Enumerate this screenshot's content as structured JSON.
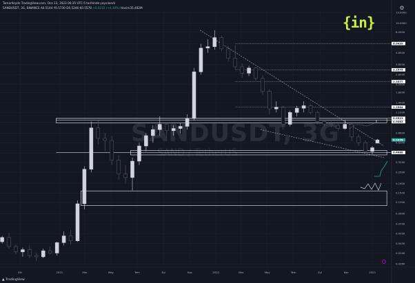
{
  "header": {
    "line1": "Tamarlleydo TradingView.com, Oca 13, 2023 06:35 UTC-5 tarihinde yayınlandı",
    "symbol": "SANDUSDT, 3G, BINANCE",
    "ohlc": "A0.5144 Y0.5730 D0.5246 K0.5578",
    "change": "+0.0232 (+4.34%)",
    "volume": "Hacim35.482M"
  },
  "logo": "{in}",
  "settings_icon": "gear-icon",
  "footer": "TradingView",
  "chart_data": {
    "type": "candlestick",
    "title": "SANDUSDT, 3G",
    "watermark_symbol": "SANDUSDT, 3G",
    "watermark_pair": "SAND / TetherUS",
    "y_scale": "log",
    "ylim": [
      0.024,
      13.5
    ],
    "y_ticks": [
      "13.0000",
      "10.0000",
      "8.0000",
      "6.0000",
      "4.8000",
      "3.6000",
      "2.8000",
      "2.2000",
      "1.8000",
      "1.4000",
      "1.1000",
      "0.8600",
      "0.6600",
      "0.5200",
      "0.4000",
      "0.3200",
      "0.2500",
      "0.1900",
      "0.1500",
      "0.1200",
      "0.0900",
      "0.0700",
      "0.0550",
      "0.0430",
      "0.0340",
      "0.0260"
    ],
    "x_ticks": [
      "Eki",
      "2021",
      "Mar",
      "May",
      "Tem",
      "Eyl",
      "Kas",
      "2022",
      "Mar",
      "May",
      "Tem",
      "Eyl",
      "Kas",
      "2023"
    ],
    "x_tick_dates": [
      "2020-10-01",
      "2021-01-01",
      "2021-03-01",
      "2021-05-01",
      "2021-07-01",
      "2021-09-01",
      "2021-11-01",
      "2022-01-01",
      "2022-03-01",
      "2022-05-01",
      "2022-07-01",
      "2022-09-01",
      "2022-11-01",
      "2023-01-01"
    ],
    "x_range": [
      "2020-08-15",
      "2023-02-15"
    ],
    "price_labels": [
      {
        "value": "6.0439",
        "color": "#ffffff"
      },
      {
        "value": "3.1575",
        "color": "#ffffff"
      },
      {
        "value": "2.3577",
        "color": "#ffffff"
      },
      {
        "value": "1.2564",
        "color": "#ffffff"
      },
      {
        "value": "0.9523",
        "color": "#ffffff"
      },
      {
        "value": "0.9083",
        "color": "#ffffff"
      },
      {
        "value": "0.5578",
        "color": "#26a69a"
      },
      {
        "value": "0.4088",
        "color": "#ffffff"
      }
    ],
    "candles": [
      {
        "d": "2020-08-20",
        "o": 0.045,
        "h": 0.052,
        "l": 0.043,
        "c": 0.05
      },
      {
        "d": "2020-09-05",
        "o": 0.05,
        "h": 0.056,
        "l": 0.038,
        "c": 0.04
      },
      {
        "d": "2020-09-21",
        "o": 0.04,
        "h": 0.042,
        "l": 0.033,
        "c": 0.035
      },
      {
        "d": "2020-10-07",
        "o": 0.035,
        "h": 0.039,
        "l": 0.031,
        "c": 0.037
      },
      {
        "d": "2020-10-23",
        "o": 0.037,
        "h": 0.041,
        "l": 0.03,
        "c": 0.032
      },
      {
        "d": "2020-11-08",
        "o": 0.032,
        "h": 0.034,
        "l": 0.028,
        "c": 0.031
      },
      {
        "d": "2020-11-24",
        "o": 0.031,
        "h": 0.038,
        "l": 0.03,
        "c": 0.036
      },
      {
        "d": "2020-12-10",
        "o": 0.036,
        "h": 0.04,
        "l": 0.033,
        "c": 0.034
      },
      {
        "d": "2020-12-26",
        "o": 0.034,
        "h": 0.045,
        "l": 0.032,
        "c": 0.044
      },
      {
        "d": "2021-01-11",
        "o": 0.044,
        "h": 0.058,
        "l": 0.041,
        "c": 0.052
      },
      {
        "d": "2021-01-27",
        "o": 0.052,
        "h": 0.06,
        "l": 0.042,
        "c": 0.046
      },
      {
        "d": "2021-02-12",
        "o": 0.046,
        "h": 0.125,
        "l": 0.045,
        "c": 0.115
      },
      {
        "d": "2021-02-28",
        "o": 0.115,
        "h": 0.29,
        "l": 0.1,
        "c": 0.27
      },
      {
        "d": "2021-03-16",
        "o": 0.27,
        "h": 0.88,
        "l": 0.25,
        "c": 0.75
      },
      {
        "d": "2021-04-01",
        "o": 0.75,
        "h": 0.9,
        "l": 0.5,
        "c": 0.58
      },
      {
        "d": "2021-04-17",
        "o": 0.58,
        "h": 0.66,
        "l": 0.42,
        "c": 0.55
      },
      {
        "d": "2021-05-03",
        "o": 0.55,
        "h": 0.62,
        "l": 0.3,
        "c": 0.34
      },
      {
        "d": "2021-05-19",
        "o": 0.34,
        "h": 0.38,
        "l": 0.21,
        "c": 0.24
      },
      {
        "d": "2021-06-04",
        "o": 0.24,
        "h": 0.3,
        "l": 0.19,
        "c": 0.22
      },
      {
        "d": "2021-06-20",
        "o": 0.22,
        "h": 0.36,
        "l": 0.16,
        "c": 0.33
      },
      {
        "d": "2021-07-06",
        "o": 0.33,
        "h": 0.52,
        "l": 0.3,
        "c": 0.48
      },
      {
        "d": "2021-07-22",
        "o": 0.48,
        "h": 0.66,
        "l": 0.42,
        "c": 0.62
      },
      {
        "d": "2021-08-07",
        "o": 0.62,
        "h": 0.8,
        "l": 0.52,
        "c": 0.72
      },
      {
        "d": "2021-08-23",
        "o": 0.72,
        "h": 1.0,
        "l": 0.62,
        "c": 0.82
      },
      {
        "d": "2021-09-08",
        "o": 0.82,
        "h": 0.86,
        "l": 0.58,
        "c": 0.7
      },
      {
        "d": "2021-09-24",
        "o": 0.7,
        "h": 0.8,
        "l": 0.62,
        "c": 0.74
      },
      {
        "d": "2021-10-10",
        "o": 0.74,
        "h": 0.85,
        "l": 0.66,
        "c": 0.78
      },
      {
        "d": "2021-10-26",
        "o": 0.78,
        "h": 1.05,
        "l": 0.72,
        "c": 0.95
      },
      {
        "d": "2021-11-11",
        "o": 0.95,
        "h": 3.3,
        "l": 0.9,
        "c": 3.0
      },
      {
        "d": "2021-11-27",
        "o": 3.0,
        "h": 6.0,
        "l": 2.8,
        "c": 5.4
      },
      {
        "d": "2021-12-13",
        "o": 5.4,
        "h": 6.7,
        "l": 4.8,
        "c": 5.6
      },
      {
        "d": "2021-12-29",
        "o": 5.6,
        "h": 8.4,
        "l": 5.2,
        "c": 7.0
      },
      {
        "d": "2022-01-14",
        "o": 7.0,
        "h": 7.3,
        "l": 5.0,
        "c": 5.3
      },
      {
        "d": "2022-01-30",
        "o": 5.3,
        "h": 5.6,
        "l": 3.9,
        "c": 4.2
      },
      {
        "d": "2022-02-15",
        "o": 4.2,
        "h": 5.8,
        "l": 3.2,
        "c": 3.4
      },
      {
        "d": "2022-03-03",
        "o": 3.4,
        "h": 3.7,
        "l": 2.6,
        "c": 2.9
      },
      {
        "d": "2022-03-19",
        "o": 2.9,
        "h": 3.5,
        "l": 2.7,
        "c": 3.3
      },
      {
        "d": "2022-04-04",
        "o": 3.3,
        "h": 3.4,
        "l": 2.4,
        "c": 2.55
      },
      {
        "d": "2022-04-20",
        "o": 2.55,
        "h": 2.75,
        "l": 1.7,
        "c": 1.85
      },
      {
        "d": "2022-05-06",
        "o": 1.85,
        "h": 1.95,
        "l": 1.05,
        "c": 1.2
      },
      {
        "d": "2022-05-22",
        "o": 1.2,
        "h": 1.45,
        "l": 1.1,
        "c": 1.25
      },
      {
        "d": "2022-06-07",
        "o": 1.25,
        "h": 1.3,
        "l": 0.72,
        "c": 0.82
      },
      {
        "d": "2022-06-23",
        "o": 0.82,
        "h": 1.15,
        "l": 0.78,
        "c": 1.1
      },
      {
        "d": "2022-07-09",
        "o": 1.1,
        "h": 1.3,
        "l": 1.0,
        "c": 1.22
      },
      {
        "d": "2022-07-25",
        "o": 1.22,
        "h": 1.45,
        "l": 1.1,
        "c": 1.3
      },
      {
        "d": "2022-08-10",
        "o": 1.3,
        "h": 1.35,
        "l": 1.05,
        "c": 1.1
      },
      {
        "d": "2022-08-26",
        "o": 1.1,
        "h": 1.15,
        "l": 0.82,
        "c": 0.88
      },
      {
        "d": "2022-09-11",
        "o": 0.88,
        "h": 0.92,
        "l": 0.78,
        "c": 0.82
      },
      {
        "d": "2022-09-27",
        "o": 0.82,
        "h": 0.88,
        "l": 0.76,
        "c": 0.8
      },
      {
        "d": "2022-10-13",
        "o": 0.8,
        "h": 0.86,
        "l": 0.7,
        "c": 0.74
      },
      {
        "d": "2022-10-29",
        "o": 0.74,
        "h": 0.92,
        "l": 0.72,
        "c": 0.82
      },
      {
        "d": "2022-11-14",
        "o": 0.82,
        "h": 0.84,
        "l": 0.54,
        "c": 0.6
      },
      {
        "d": "2022-11-30",
        "o": 0.6,
        "h": 0.64,
        "l": 0.48,
        "c": 0.52
      },
      {
        "d": "2022-12-16",
        "o": 0.52,
        "h": 0.55,
        "l": 0.4,
        "c": 0.42
      },
      {
        "d": "2023-01-01",
        "o": 0.42,
        "h": 0.48,
        "l": 0.39,
        "c": 0.46
      },
      {
        "d": "2023-01-13",
        "o": 0.5144,
        "h": 0.573,
        "l": 0.5246,
        "c": 0.5578
      }
    ],
    "h_lines_dotted": [
      6.0439,
      3.1575,
      2.3577,
      1.2564
    ],
    "h_lines_solid": [
      0.9523,
      0.9083,
      0.4088
    ],
    "zones": [
      {
        "from": "2020-12-24",
        "to": "2023-02-04",
        "low": 0.85,
        "high": 0.95
      },
      {
        "from": "2021-06-16",
        "to": "2023-02-04",
        "low": 0.385,
        "high": 0.43
      },
      {
        "from": "2021-02-20",
        "to": "2023-02-04",
        "low": 0.11,
        "high": 0.158
      }
    ],
    "trendlines": [
      {
        "style": "dashed",
        "from": [
          "2021-11-25",
          8.4
        ],
        "to": [
          "2023-01-28",
          0.48
        ]
      },
      {
        "style": "dashed",
        "from": [
          "2022-04-15",
          0.72
        ],
        "to": [
          "2023-01-28",
          0.36
        ]
      }
    ]
  }
}
